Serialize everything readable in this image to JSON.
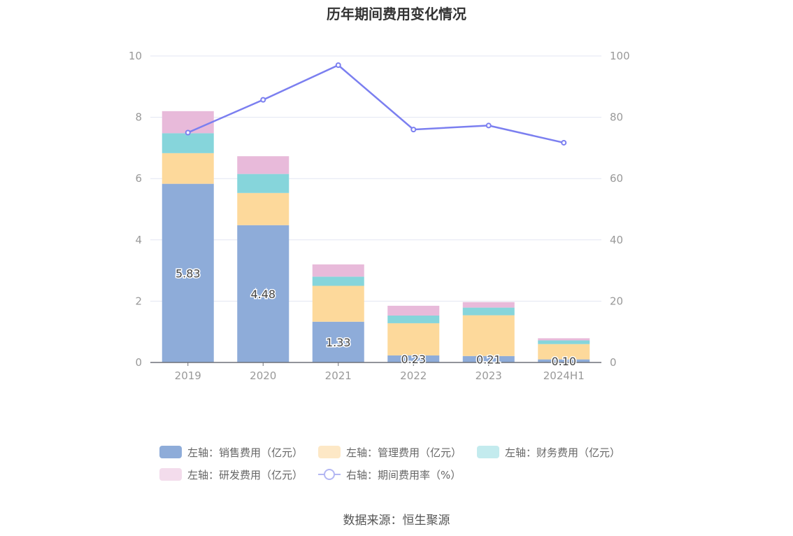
{
  "chart_data": {
    "type": "bar",
    "title": "历年期间费用变化情况",
    "categories": [
      "2019",
      "2020",
      "2021",
      "2022",
      "2023",
      "2024H1"
    ],
    "left_axis": {
      "ylim": [
        0,
        10
      ],
      "ticks": [
        "0",
        "2",
        "4",
        "6",
        "8",
        "10"
      ]
    },
    "right_axis": {
      "ylim": [
        0,
        100
      ],
      "ticks": [
        "0",
        "20",
        "40",
        "60",
        "80",
        "100"
      ]
    },
    "grid": true,
    "legend_position": "bottom",
    "series": [
      {
        "name": "左轴：销售费用（亿元）",
        "type": "bar",
        "axis": "left",
        "color": "#8eacd9",
        "values": [
          5.83,
          4.48,
          1.33,
          0.23,
          0.21,
          0.1
        ],
        "labels": [
          "5.83",
          "4.48",
          "1.33",
          "0.23",
          "0.21",
          "0.10"
        ]
      },
      {
        "name": "左轴：管理费用（亿元）",
        "type": "bar",
        "axis": "left",
        "color": "#fdd99b",
        "values": [
          1.0,
          1.05,
          1.17,
          1.05,
          1.33,
          0.5
        ]
      },
      {
        "name": "左轴：财务费用（亿元）",
        "type": "bar",
        "axis": "left",
        "color": "#86d5db",
        "values": [
          0.65,
          0.62,
          0.3,
          0.25,
          0.25,
          0.12
        ]
      },
      {
        "name": "左轴：研发费用（亿元）",
        "type": "bar",
        "axis": "left",
        "color": "#e8bada",
        "values": [
          0.72,
          0.58,
          0.4,
          0.32,
          0.18,
          0.07
        ]
      },
      {
        "name": "右轴：期间费用率（%）",
        "type": "line",
        "axis": "right",
        "color": "#7b7ff0",
        "values": [
          75.0,
          85.7,
          97.0,
          76.0,
          77.3,
          71.7
        ]
      }
    ]
  },
  "legend": {
    "items": [
      {
        "label": "左轴：销售费用（亿元）",
        "color": "#8eacd9",
        "kind": "bar"
      },
      {
        "label": "左轴：管理费用（亿元）",
        "color": "#fde8c6",
        "kind": "bar"
      },
      {
        "label": "左轴：财务费用（亿元）",
        "color": "#c3ebee",
        "kind": "bar"
      },
      {
        "label": "左轴：研发费用（亿元）",
        "color": "#f3dcec",
        "kind": "bar"
      },
      {
        "label": "右轴：期间费用率（%）",
        "color": "#b3b7f3",
        "kind": "line"
      }
    ]
  },
  "source": "数据来源：恒生聚源"
}
